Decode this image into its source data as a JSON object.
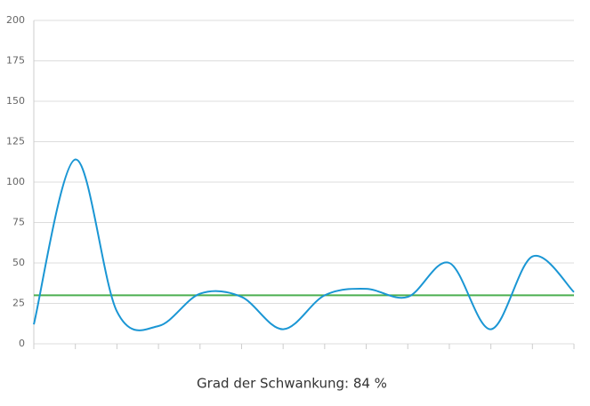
{
  "chart_data": {
    "type": "line",
    "categories": [
      null,
      null,
      null,
      null,
      null,
      null,
      null,
      null,
      null,
      null,
      null,
      null,
      null,
      null
    ],
    "series": [
      {
        "color": "#1a96d4",
        "values": [
          12,
          114,
          20,
          11,
          31,
          29,
          9,
          30,
          34,
          29,
          50,
          9,
          54,
          32
        ]
      },
      {
        "color": "#4caf50",
        "values": [
          30,
          30,
          30,
          30,
          30,
          30,
          30,
          30,
          30,
          30,
          30,
          30,
          30,
          30
        ]
      }
    ],
    "ylim": [
      0,
      200
    ],
    "yticks": [
      0,
      25,
      50,
      75,
      100,
      125,
      150,
      175,
      200
    ],
    "grid": true,
    "caption": "Grad der Schwankung: 84 %"
  }
}
